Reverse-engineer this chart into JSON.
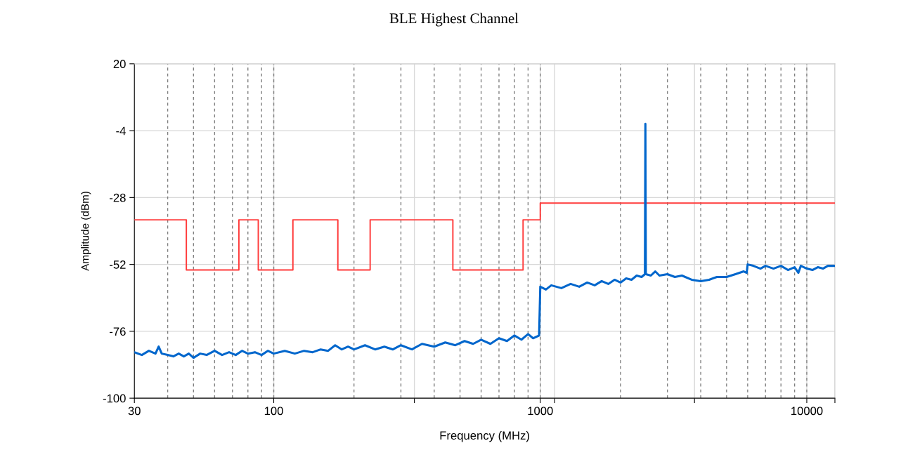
{
  "chart_data": {
    "type": "line",
    "title": "BLE Highest Channel",
    "xlabel": "Frequency (MHz)",
    "ylabel": "Amplitude (dBm)",
    "log": "x",
    "xlim": [
      30,
      12750
    ],
    "ylim": [
      -100,
      20
    ],
    "xticks": [
      30,
      100,
      {
        "value": 337,
        "label": null
      },
      1000,
      {
        "value": 1133,
        "label": null
      },
      {
        "value": 3790,
        "label": null
      },
      10000,
      {
        "value": 12750,
        "label": null
      }
    ],
    "yticks": [
      20,
      -4,
      -28,
      -52,
      -76,
      -100
    ],
    "grid": true,
    "marker": "none",
    "line_style": "solid",
    "series": [
      {
        "type": "step",
        "color": "#ff3b3b",
        "x": [
          30,
          47,
          74,
          87.5,
          118,
          174,
          230,
          470,
          862,
          1000,
          12750
        ],
        "values": [
          -36,
          -54,
          -36,
          -54,
          -36,
          -54,
          -36,
          -54,
          -36,
          -30,
          -30
        ]
      },
      {
        "color": "#0066cc",
        "x": [
          30,
          32,
          34,
          36,
          37,
          38,
          40,
          42,
          44,
          46,
          48,
          50,
          53,
          56,
          60,
          64,
          68,
          72,
          76,
          80,
          85,
          90,
          95,
          100,
          110,
          120,
          130,
          140,
          150,
          160,
          170,
          180,
          190,
          200,
          220,
          240,
          260,
          280,
          300,
          330,
          360,
          400,
          440,
          480,
          520,
          560,
          600,
          650,
          700,
          750,
          800,
          850,
          900,
          940,
          990,
          1000,
          1050,
          1100,
          1200,
          1300,
          1400,
          1500,
          1600,
          1700,
          1800,
          1900,
          2000,
          2100,
          2200,
          2300,
          2400,
          2470,
          2480,
          2490,
          2600,
          2700,
          2800,
          3000,
          3200,
          3400,
          3700,
          4000,
          4300,
          4600,
          5000,
          5400,
          5800,
          5950,
          6000,
          6300,
          6700,
          7000,
          7500,
          8000,
          8500,
          9000,
          9300,
          9500,
          10000,
          10500,
          11000,
          11500,
          12000,
          12750
        ],
        "values": [
          -83.5,
          -84.5,
          -83,
          -84,
          -81.5,
          -84,
          -84.5,
          -85,
          -84,
          -85,
          -84,
          -85.5,
          -84,
          -84.5,
          -83,
          -84.5,
          -83.5,
          -84.5,
          -83,
          -84,
          -83.5,
          -84.5,
          -83,
          -84,
          -83,
          -84,
          -83,
          -83.5,
          -82.5,
          -83,
          -81,
          -82.5,
          -81.5,
          -82.5,
          -81,
          -82.5,
          -81.5,
          -82.5,
          -81,
          -82.5,
          -80.5,
          -81.5,
          -80,
          -81,
          -79.5,
          -80.5,
          -79,
          -80.5,
          -78.5,
          -79.5,
          -77.5,
          -79,
          -77,
          -78.5,
          -77.5,
          -60,
          -61,
          -59.5,
          -60.5,
          -59,
          -60,
          -58.5,
          -59.5,
          -58,
          -59,
          -57.5,
          -58.5,
          -57,
          -57.5,
          -56,
          -56.5,
          -55.5,
          -1.5,
          -55.5,
          -56,
          -54.5,
          -56,
          -55.5,
          -56.5,
          -56,
          -57.5,
          -58,
          -57.5,
          -56.5,
          -56.5,
          -55.5,
          -54.5,
          -55,
          -52,
          -52.5,
          -53.5,
          -52.5,
          -53.5,
          -52.5,
          -54,
          -53,
          -55,
          -52.5,
          -53.5,
          -54,
          -53,
          -53.5,
          -52.5,
          -52.5
        ]
      }
    ],
    "ref_lines": [
      {
        "axis": "x",
        "value": 40,
        "color": "#808080",
        "line_style": "dashed"
      },
      {
        "axis": "x",
        "value": 50,
        "color": "#808080",
        "line_style": "dashed"
      },
      {
        "axis": "x",
        "value": 60,
        "color": "#808080",
        "line_style": "dashed"
      },
      {
        "axis": "x",
        "value": 70,
        "color": "#808080",
        "line_style": "dashed"
      },
      {
        "axis": "x",
        "value": 80,
        "color": "#808080",
        "line_style": "dashed"
      },
      {
        "axis": "x",
        "value": 90,
        "color": "#808080",
        "line_style": "dashed"
      },
      {
        "axis": "x",
        "value": 100,
        "color": "#808080",
        "line_style": "dashed"
      },
      {
        "axis": "x",
        "value": 200,
        "color": "#808080",
        "line_style": "dashed"
      },
      {
        "axis": "x",
        "value": 300,
        "color": "#808080",
        "line_style": "dashed"
      },
      {
        "axis": "x",
        "value": 400,
        "color": "#808080",
        "line_style": "dashed"
      },
      {
        "axis": "x",
        "value": 500,
        "color": "#808080",
        "line_style": "dashed"
      },
      {
        "axis": "x",
        "value": 600,
        "color": "#808080",
        "line_style": "dashed"
      },
      {
        "axis": "x",
        "value": 700,
        "color": "#808080",
        "line_style": "dashed"
      },
      {
        "axis": "x",
        "value": 800,
        "color": "#808080",
        "line_style": "dashed"
      },
      {
        "axis": "x",
        "value": 900,
        "color": "#808080",
        "line_style": "dashed"
      },
      {
        "axis": "x",
        "value": 1000,
        "color": "#808080",
        "line_style": "dashed"
      },
      {
        "axis": "x",
        "value": 2000,
        "color": "#808080",
        "line_style": "dashed"
      },
      {
        "axis": "x",
        "value": 3000,
        "color": "#808080",
        "line_style": "dashed"
      },
      {
        "axis": "x",
        "value": 4000,
        "color": "#808080",
        "line_style": "dashed"
      },
      {
        "axis": "x",
        "value": 5000,
        "color": "#808080",
        "line_style": "dashed"
      },
      {
        "axis": "x",
        "value": 6000,
        "color": "#808080",
        "line_style": "dashed"
      },
      {
        "axis": "x",
        "value": 7000,
        "color": "#808080",
        "line_style": "dashed"
      },
      {
        "axis": "x",
        "value": 8000,
        "color": "#808080",
        "line_style": "dashed"
      },
      {
        "axis": "x",
        "value": 9000,
        "color": "#808080",
        "line_style": "dashed"
      },
      {
        "axis": "x",
        "value": 10000,
        "color": "#808080",
        "line_style": "dashed"
      }
    ]
  }
}
